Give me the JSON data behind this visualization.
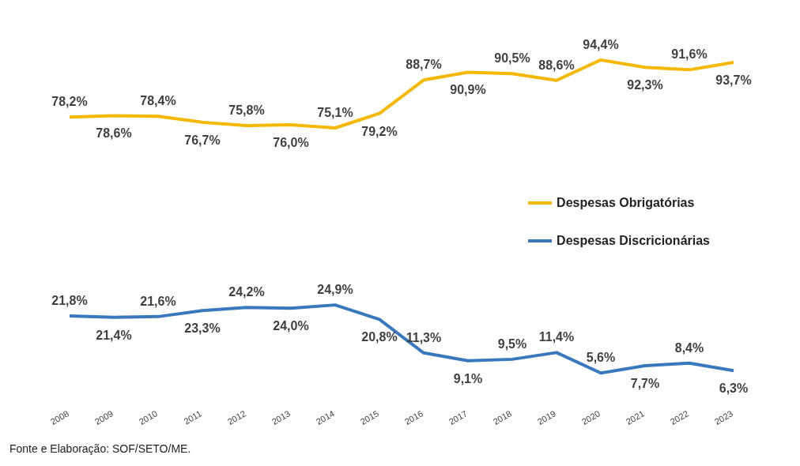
{
  "chart_data": {
    "type": "line",
    "categories": [
      "2008",
      "2009",
      "2010",
      "2011",
      "2012",
      "2013",
      "2014",
      "2015",
      "2016",
      "2017",
      "2018",
      "2019",
      "2020",
      "2021",
      "2022",
      "2023"
    ],
    "series": [
      {
        "name": "Despesas Obrigatórias",
        "color": "#f5b800",
        "values": [
          78.2,
          78.6,
          78.4,
          76.7,
          75.8,
          76.0,
          75.1,
          79.2,
          88.7,
          90.9,
          90.5,
          88.6,
          94.4,
          92.3,
          91.6,
          93.7
        ],
        "value_labels": [
          "78,2%",
          "78,6%",
          "78,4%",
          "76,7%",
          "75,8%",
          "76,0%",
          "75,1%",
          "79,2%",
          "88,7%",
          "90,9%",
          "90,5%",
          "88,6%",
          "94,4%",
          "92,3%",
          "91,6%",
          "93,7%"
        ]
      },
      {
        "name": "Despesas Discricionárias",
        "color": "#3a78bd",
        "values": [
          21.8,
          21.4,
          21.6,
          23.3,
          24.2,
          24.0,
          24.9,
          20.8,
          11.3,
          9.1,
          9.5,
          11.4,
          5.6,
          7.7,
          8.4,
          6.3
        ],
        "value_labels": [
          "21,8%",
          "21,4%",
          "21,6%",
          "23,3%",
          "24,2%",
          "24,0%",
          "24,9%",
          "20,8%",
          "11,3%",
          "9,1%",
          "9,5%",
          "11,4%",
          "5,6%",
          "7,7%",
          "8,4%",
          "6,3%"
        ]
      }
    ],
    "grid": false,
    "legend": "right",
    "marker": "none",
    "line_style": "solid",
    "tick_labels": "x",
    "annotations": [
      "Fonte e Elaboração: SOF/SETO/ME."
    ]
  }
}
